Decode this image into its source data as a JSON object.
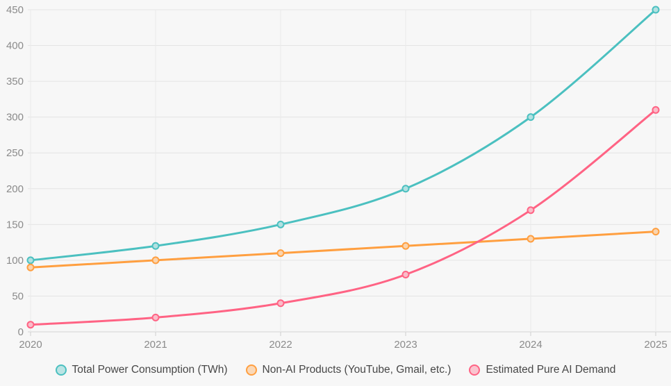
{
  "chart_data": {
    "type": "line",
    "title": "",
    "x": [
      "2020",
      "2021",
      "2022",
      "2023",
      "2024",
      "2025"
    ],
    "series": [
      {
        "name": "Total Power Consumption (TWh)",
        "color": "#4BC0C0",
        "values": [
          100,
          120,
          150,
          200,
          300,
          450
        ]
      },
      {
        "name": "Non-AI Products (YouTube, Gmail, etc.)",
        "color": "#FF9F40",
        "values": [
          90,
          100,
          110,
          120,
          130,
          140
        ]
      },
      {
        "name": "Estimated Pure AI Demand",
        "color": "#FF6384",
        "values": [
          10,
          20,
          40,
          80,
          170,
          310
        ]
      }
    ],
    "yticks": [
      0,
      50,
      100,
      150,
      200,
      250,
      300,
      350,
      400,
      450
    ],
    "ylim": [
      0,
      450
    ],
    "grid": true,
    "legend_position": "bottom",
    "background": "#f7f7f7"
  }
}
